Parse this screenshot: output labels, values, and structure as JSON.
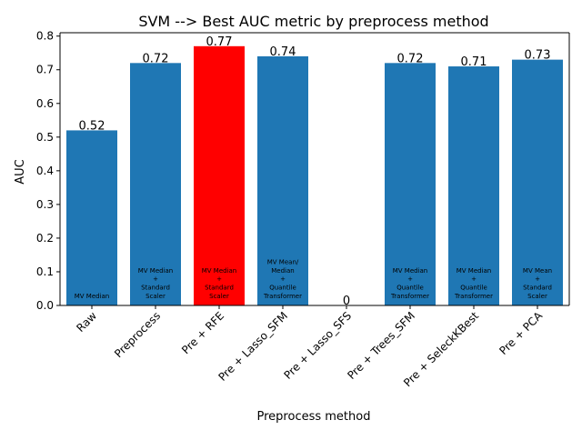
{
  "chart_data": {
    "type": "bar",
    "title": "SVM --> Best AUC metric by preprocess method",
    "xlabel": "Preprocess method",
    "ylabel": "AUC",
    "ylim": [
      0,
      0.81
    ],
    "yticks": [
      0.0,
      0.1,
      0.2,
      0.3,
      0.4,
      0.5,
      0.6,
      0.7,
      0.8
    ],
    "ytick_labels": [
      "0.0",
      "0.1",
      "0.2",
      "0.3",
      "0.4",
      "0.5",
      "0.6",
      "0.7",
      "0.8"
    ],
    "grid": false,
    "categories": [
      "Raw",
      "Preprocess",
      "Pre + RFE",
      "Pre + Lasso_SFM",
      "Pre + Lasso_SFS",
      "Pre + Trees_SFM",
      "Pre + SeleckKBest",
      "Pre + PCA"
    ],
    "values": [
      0.52,
      0.72,
      0.77,
      0.74,
      0,
      0.72,
      0.71,
      0.73
    ],
    "value_labels": [
      "0.52",
      "0.72",
      "0.77",
      "0.74",
      "0",
      "0.72",
      "0.71",
      "0.73"
    ],
    "bar_annotations": [
      [
        "MV Median"
      ],
      [
        "MV Median",
        "+",
        "Standard",
        "Scaler"
      ],
      [
        "MV Median",
        "+",
        "Standard",
        "Scaler"
      ],
      [
        "MV Mean/",
        "Median",
        "+",
        "Quantile",
        "Transformer"
      ],
      [],
      [
        "MV Median",
        "+",
        "Quantile",
        "Transformer"
      ],
      [
        "MV Median",
        "+",
        "Quantile",
        "Transformer"
      ],
      [
        "MV Mean",
        "+",
        "Standard",
        "Scaler"
      ]
    ],
    "colors": {
      "default_bar": "#1f77b4",
      "highlight_bar": "#ff0000"
    },
    "highlight_index": 2
  }
}
